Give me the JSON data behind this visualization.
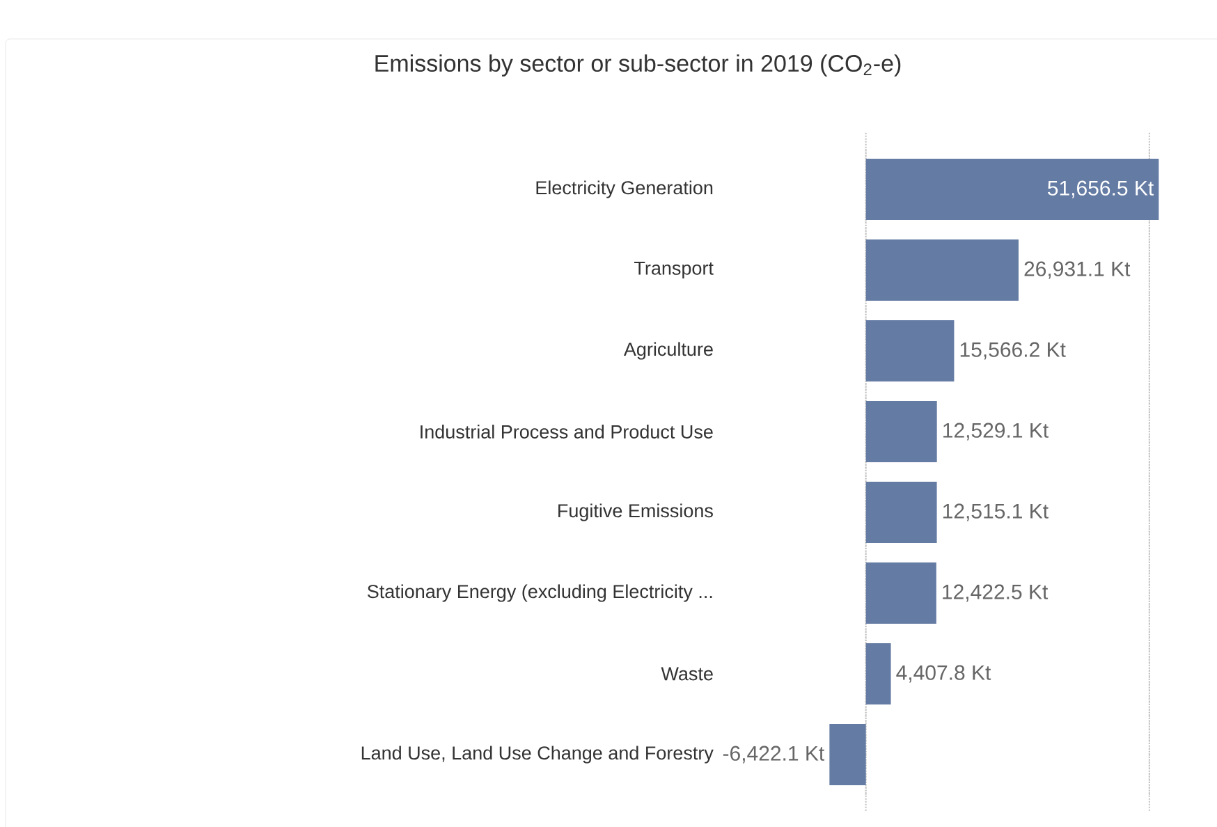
{
  "chart_data": {
    "type": "bar",
    "orientation": "horizontal",
    "title": "Emissions by sector or sub-sector in 2019 (CO$_{2}$-e)",
    "categories": [
      "Electricity Generation",
      "Transport",
      "Agriculture",
      "Industrial Process and Product Use",
      "Fugitive Emissions",
      "Stationary Energy (excluding Electricity ...",
      "Waste",
      "Land Use, Land Use Change and Forestry"
    ],
    "values": [
      51656.5,
      26931.1,
      15566.2,
      12529.1,
      12515.1,
      12422.5,
      4407.8,
      -6422.1
    ],
    "value_labels": [
      "51,656.5 Kt",
      "26,931.1 Kt",
      "15,566.2 Kt",
      "12,529.1 Kt",
      "12,515.1 Kt",
      "12,422.5 Kt",
      "4,407.8 Kt",
      "-6,422.1 Kt"
    ],
    "color": "#647ba3",
    "xticks": [
      {
        "value": 0,
        "label": null
      },
      {
        "value": 50000,
        "label": null
      }
    ],
    "grid": "x"
  }
}
